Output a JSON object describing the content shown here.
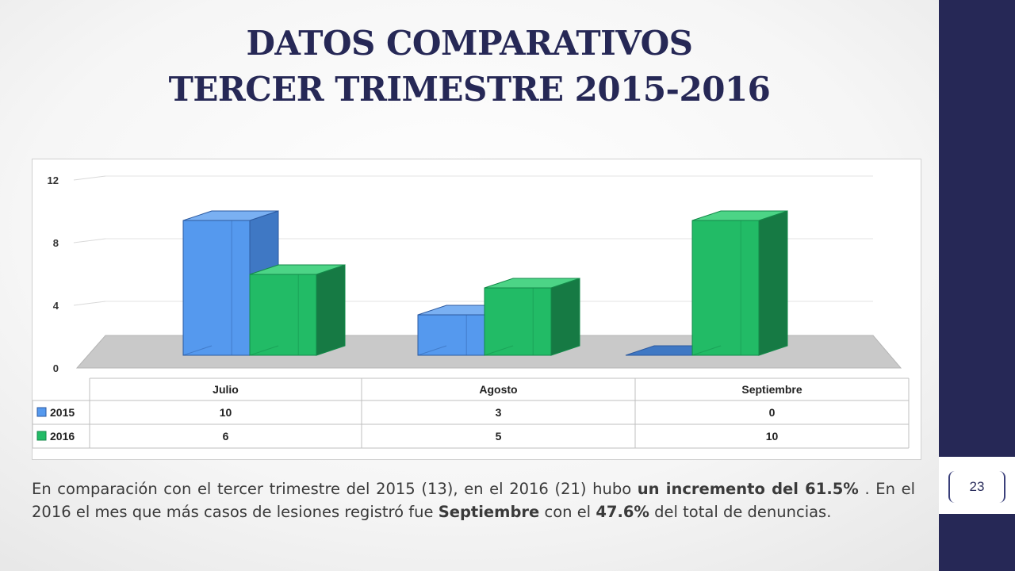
{
  "title": {
    "line1": "DATOS COMPARATIVOS",
    "line2": "TERCER TRIMESTRE 2015-2016"
  },
  "page_number": "23",
  "colors": {
    "sidebar": "#262856",
    "title": "#262856",
    "series_2015": "#5599ee",
    "series_2016": "#22bb66"
  },
  "chart_data": {
    "type": "bar",
    "categories": [
      "Julio",
      "Agosto",
      "Septiembre"
    ],
    "series": [
      {
        "name": "2015",
        "values": [
          10,
          3,
          0
        ]
      },
      {
        "name": "2016",
        "values": [
          6,
          5,
          10
        ]
      }
    ],
    "yticks": [
      "0",
      "4",
      "8",
      "12"
    ],
    "ylim": [
      0,
      12
    ],
    "grid": true,
    "data_table": true,
    "table_values": [
      [
        "10",
        "3",
        "0"
      ],
      [
        "6",
        "5",
        "10"
      ]
    ]
  },
  "caption": {
    "p1": "En comparación con el tercer trimestre del 2015 (13), en el 2016 (21) hubo ",
    "b1": "un incremento del 61.5%",
    "p2": " . En el 2016 el mes que más casos de lesiones registró fue ",
    "b2": "Septiembre",
    "p3": " con el ",
    "b3": "47.6%",
    "p4": " del total de denuncias."
  }
}
